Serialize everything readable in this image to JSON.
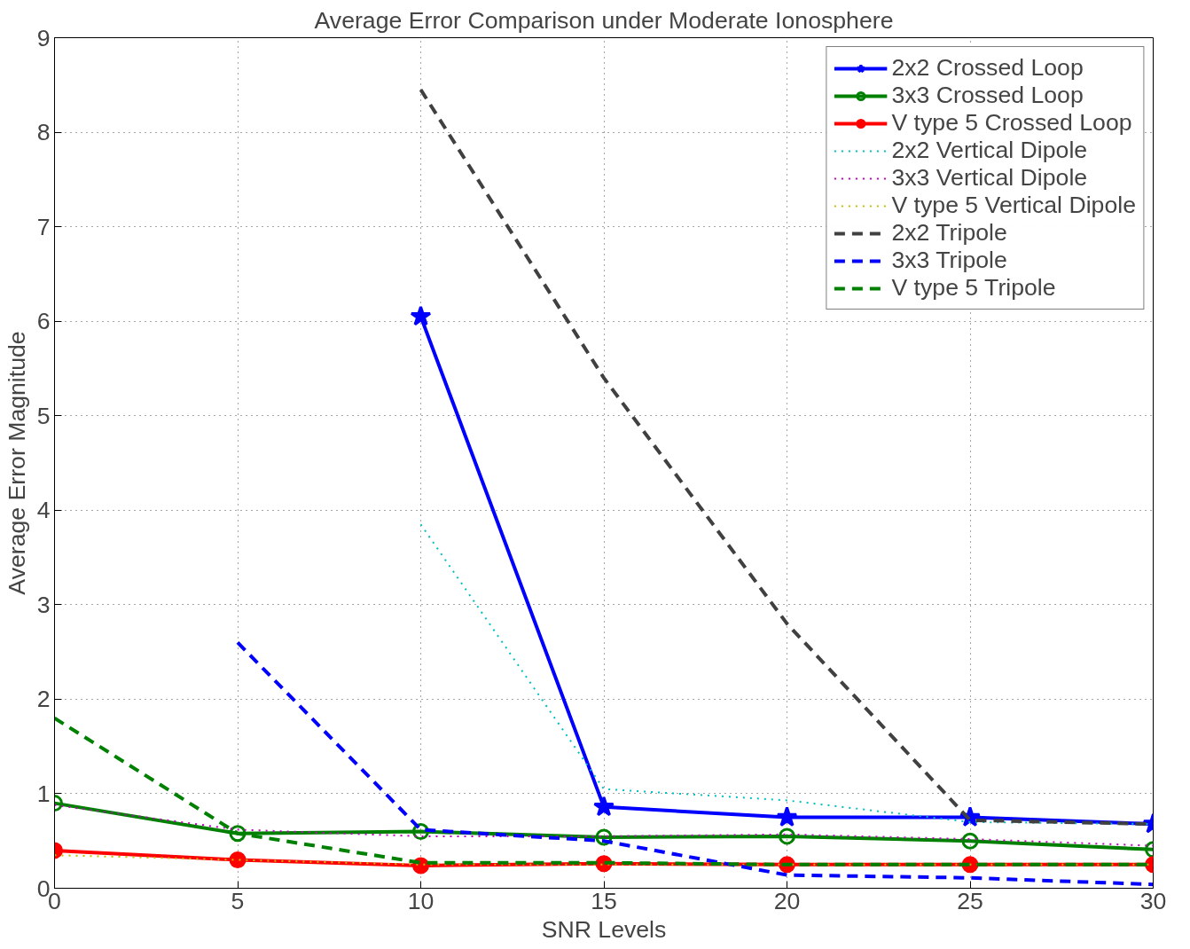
{
  "chart_data": {
    "type": "line",
    "title": "Average Error Comparison under Moderate Ionosphere",
    "xlabel": "SNR Levels",
    "ylabel": "Average Error Magnitude",
    "x": [
      0,
      5,
      10,
      15,
      20,
      25,
      30
    ],
    "xlim": [
      0,
      30
    ],
    "xticks": [
      0,
      5,
      10,
      15,
      20,
      25,
      30
    ],
    "ylim": [
      0,
      9
    ],
    "yticks": [
      0,
      1,
      2,
      3,
      4,
      5,
      6,
      7,
      8,
      9
    ],
    "grid": true,
    "legend": "top right",
    "series": [
      {
        "name": "2x2 Crossed Loop",
        "color": "#0000ff",
        "marker": "star",
        "line_style": "solid",
        "values": [
          null,
          null,
          6.05,
          0.86,
          0.75,
          0.75,
          0.68
        ]
      },
      {
        "name": "3x3 Crossed Loop",
        "color": "#008000",
        "marker": "circle",
        "line_style": "solid",
        "values": [
          0.9,
          0.58,
          0.6,
          0.54,
          0.55,
          0.5,
          0.41
        ]
      },
      {
        "name": "V type 5 Crossed Loop",
        "color": "#ff0000",
        "marker": "circle",
        "line_style": "solid",
        "values": [
          0.4,
          0.3,
          0.24,
          0.26,
          0.25,
          0.25,
          0.25
        ]
      },
      {
        "name": "2x2 Vertical Dipole",
        "color": "#00bfbf",
        "marker": "none",
        "line_style": "dotted",
        "values": [
          null,
          null,
          3.85,
          1.05,
          0.93,
          0.7,
          0.68
        ]
      },
      {
        "name": "3x3 Vertical Dipole",
        "color": "#bf00bf",
        "marker": "none",
        "line_style": "dotted",
        "values": [
          0.88,
          0.62,
          0.55,
          0.55,
          0.57,
          0.52,
          0.45
        ]
      },
      {
        "name": "V type 5 Vertical Dipole",
        "color": "#bfbf00",
        "marker": "none",
        "line_style": "dotted",
        "values": [
          0.35,
          0.3,
          0.25,
          0.25,
          0.25,
          0.25,
          0.25
        ]
      },
      {
        "name": "2x2 Tripole",
        "color": "#404040",
        "marker": "none",
        "line_style": "dashed",
        "values": [
          null,
          null,
          8.45,
          5.4,
          2.8,
          0.72,
          0.68
        ]
      },
      {
        "name": "3x3 Tripole",
        "color": "#0000ff",
        "marker": "none",
        "line_style": "dashed",
        "values": [
          null,
          2.6,
          0.62,
          0.5,
          0.14,
          0.11,
          0.04
        ]
      },
      {
        "name": "V type 5 Tripole",
        "color": "#008000",
        "marker": "none",
        "line_style": "dashed",
        "values": [
          1.8,
          0.58,
          0.27,
          0.27,
          0.25,
          0.25,
          0.25
        ]
      }
    ]
  }
}
